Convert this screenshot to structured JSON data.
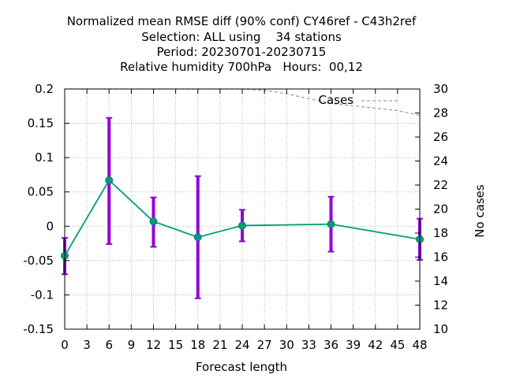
{
  "chart_data": {
    "type": "line",
    "title_lines": [
      "Normalized mean RMSE diff (90% conf) CY46ref - C43h2ref",
      "Selection: ALL using    34 stations",
      "Period: 20230701-20230715",
      "Relative humidity 700hPa   Hours:  00,12"
    ],
    "xlabel": "Forecast length",
    "ylabel": "",
    "y2label": "No cases",
    "xlim": [
      0,
      48
    ],
    "ylim": [
      -0.15,
      0.2
    ],
    "y2lim": [
      10,
      30
    ],
    "xticks": [
      "0",
      "3",
      "6",
      "9",
      "12",
      "15",
      "18",
      "21",
      "24",
      "27",
      "30",
      "33",
      "36",
      "39",
      "42",
      "45",
      "48"
    ],
    "yticks": [
      "0.2",
      "0.15",
      "0.1",
      "0.05",
      "0",
      "-0.05",
      "-0.1",
      "-0.15"
    ],
    "y2ticks": [
      "30",
      "28",
      "26",
      "24",
      "22",
      "20",
      "18",
      "16",
      "14",
      "12",
      "10"
    ],
    "grid": true,
    "legend_position": "top-right",
    "series": [
      {
        "name": "",
        "color": "#009e73",
        "x": [
          0,
          6,
          12,
          18,
          24,
          36,
          48
        ],
        "y": [
          -0.043,
          0.067,
          0.007,
          -0.016,
          0.001,
          0.003,
          -0.019
        ],
        "errorbar_color": "#9400d3",
        "err_low": [
          -0.07,
          -0.026,
          -0.03,
          -0.105,
          -0.022,
          -0.037,
          -0.049
        ],
        "err_high": [
          -0.017,
          0.158,
          0.042,
          0.073,
          0.024,
          0.043,
          0.011
        ]
      },
      {
        "name": "Cases",
        "color": "#a0a0a0",
        "axis": "y2",
        "x": [
          0,
          12,
          24,
          27,
          30,
          33,
          36,
          39,
          42,
          45,
          48
        ],
        "y": [
          30,
          30,
          30,
          29.9,
          29.6,
          29.2,
          28.8,
          28.6,
          28.4,
          28.2,
          27.8
        ]
      }
    ]
  }
}
